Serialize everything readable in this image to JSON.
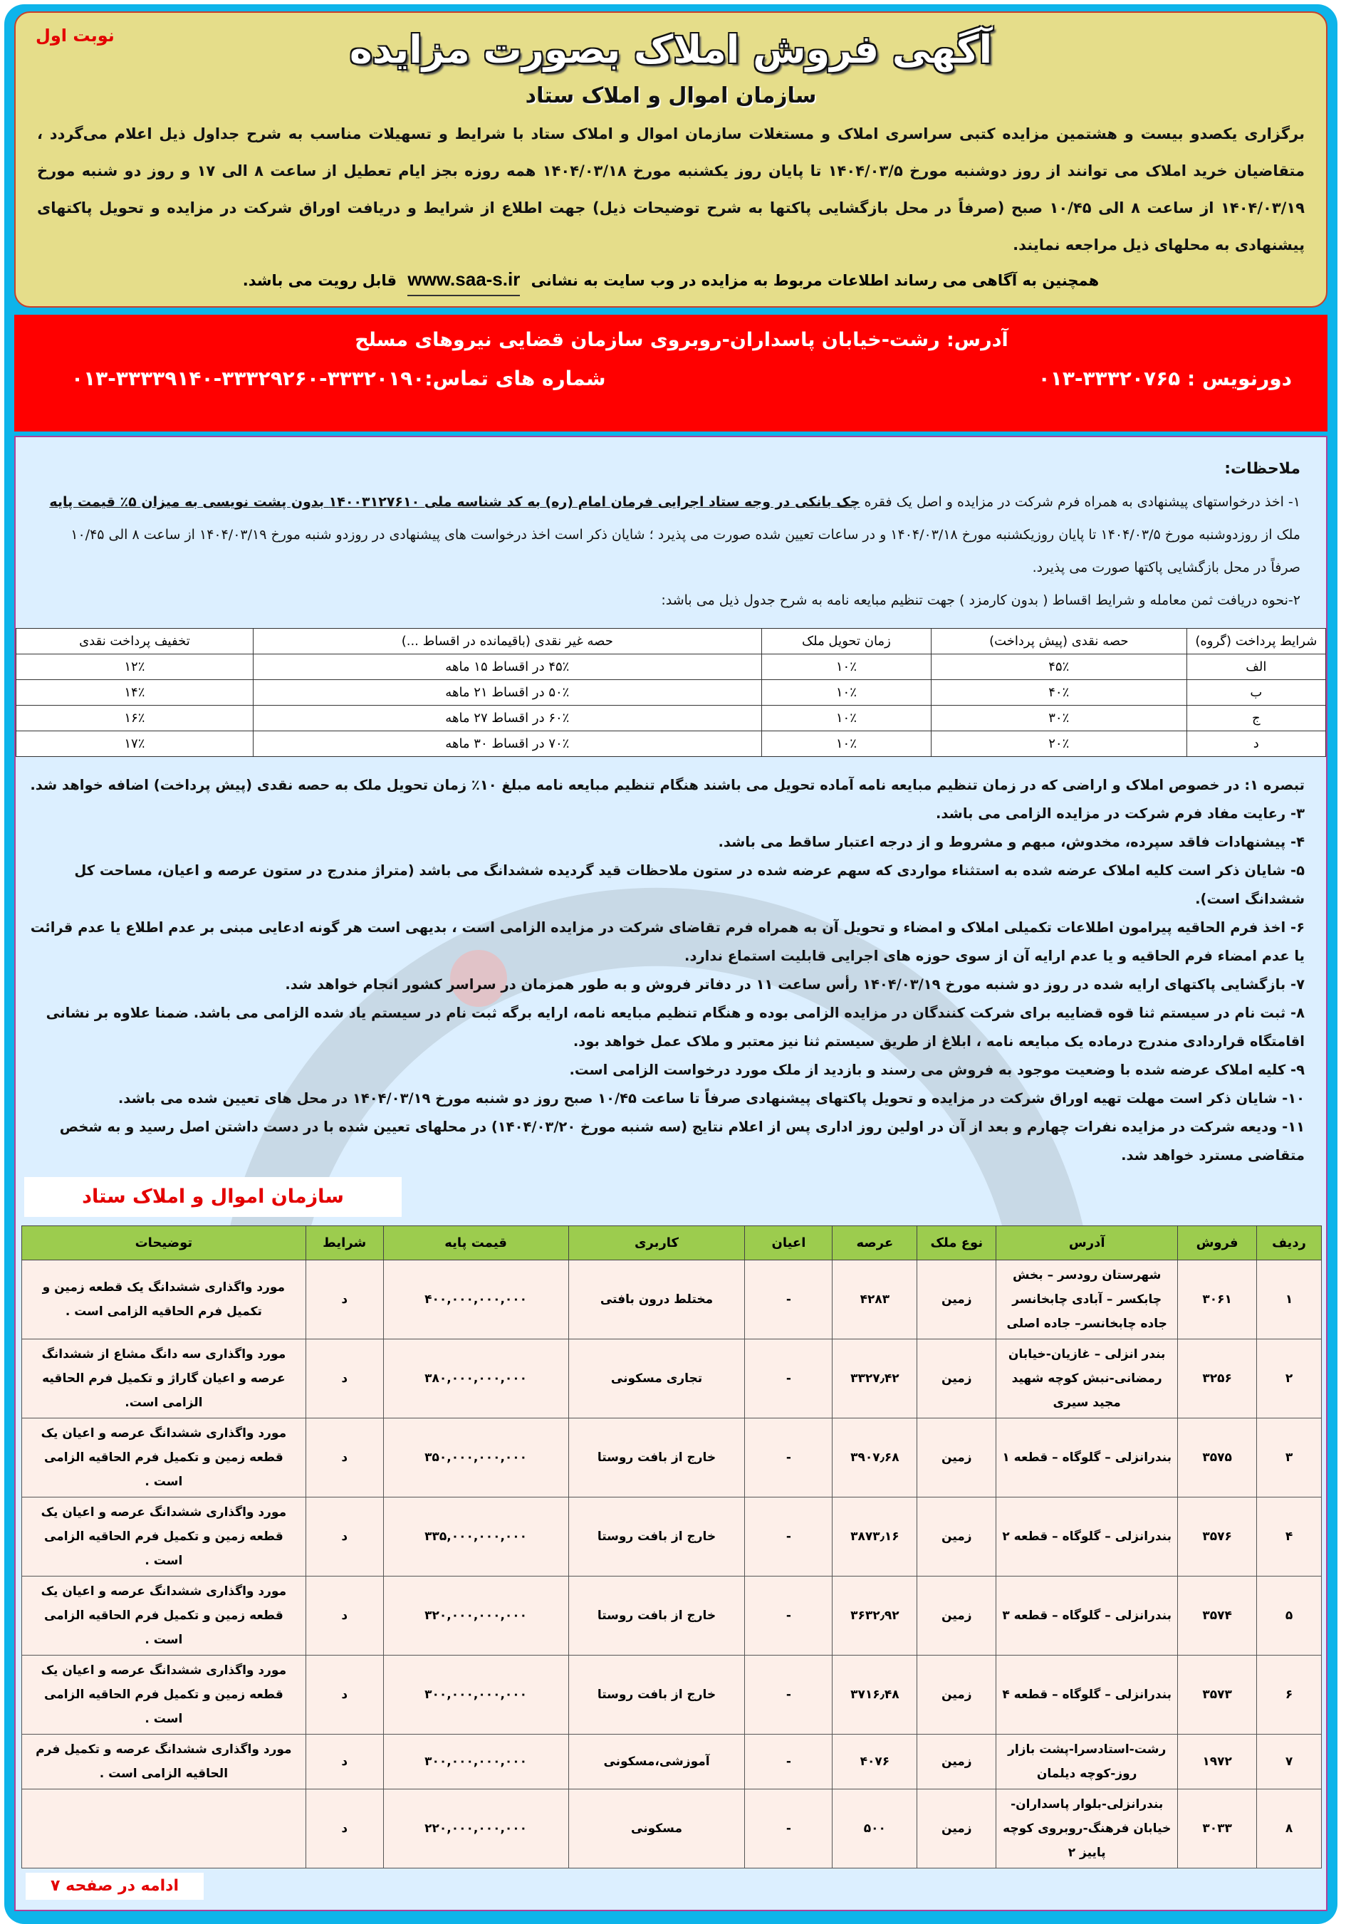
{
  "colors": {
    "frame": "#0db4ea",
    "header_bg": "#e5dd8a",
    "red_band": "#ff0000",
    "notes_bg": "#dcefff",
    "table_header": "#9ccc4e",
    "accent_red": "#e30000"
  },
  "header": {
    "badge": "نوبت اول",
    "title": "آگهی فروش املاک بصورت مزایده",
    "subtitle": "سازمان اموال و املاک ستاد",
    "intro": "برگزاری یکصدو بیست و هشتمین مزایده کتبی سراسری املاک و مستغلات سازمان اموال و املاک ستاد با شرایط و تسهیلات مناسب به شرح جداول ذیل اعلام می‌گردد ، متقاضیان خرید املاک می توانند از روز دوشنبه مورخ ۱۴۰۴/۰۳/۵ تا پایان روز یکشنبه مورخ ۱۴۰۴/۰۳/۱۸ همه روزه بجز ایام تعطیل از ساعت ۸ الی ۱۷ و روز دو شنبه مورخ ۱۴۰۴/۰۳/۱۹ از ساعت ۸ الی ۱۰/۴۵ صبح (صرفاً در محل بازگشایی پاکتها به شرح توضیحات ذیل) جهت اطلاع از شرایط و دریافت اوراق شرکت در مزایده و تحویل پاکتهای پیشنهادی به محلهای ذیل مراجعه نمایند.",
    "web_pre": "همچنین به آگاهی می رساند اطلاعات مربوط به مزایده در وب سایت به نشانی",
    "web_url": "www.saa-s.ir",
    "web_post": "قابل رویت می باشد."
  },
  "contact": {
    "address": "آدرس: رشت-خیابان پاسداران-روبروی سازمان قضایی نیروهای مسلح",
    "fax_label": "دورنویس :",
    "fax": "۰۱۳-۳۳۳۲۰۷۶۵",
    "phones_label": "شماره های تماس:",
    "phones": "۰۱۳-۳۳۳۳۹۱۴۰-۳۳۳۲۹۲۶۰-۳۳۳۲۰۱۹۰"
  },
  "notes": {
    "heading": "ملاحظات:",
    "n1_pre": "۱- اخذ درخواستهای پیشنهادی به همراه فرم شرکت در مزایده و اصل یک فقره ",
    "n1_bold": "چک بانکی در وجه ستاد اجرایی فرمان امام (ره) به کد شناسه ملی ۱۴۰۰۳۱۲۷۶۱۰ بدون پشت نویسی به میزان ۵٪ قیمت پایه",
    "n1_post": " ملک از روزدوشنبه مورخ ۱۴۰۴/۰۳/۵ تا پایان روزیکشنبه مورخ ۱۴۰۴/۰۳/۱۸ و در ساعات تعیین شده صورت می پذیرد ؛ شایان ذکر است اخذ درخواست های پیشنهادی در روزدو شنبه مورخ ۱۴۰۴/۰۳/۱۹ از ساعت ۸ الی ۱۰/۴۵ صرفاً در محل بازگشایی پاکتها صورت می پذیرد.",
    "n2": "۲-نحوه دریافت ثمن معامله و شرایط اقساط ( بدون کارمزد ) جهت تنظیم مبایعه نامه به شرح جدول ذیل می باشد:"
  },
  "installments": {
    "headers": [
      "شرایط پرداخت (گروه)",
      "حصه نقدی (پیش پرداخت)",
      "زمان تحویل ملک",
      "حصه غیر نقدی (باقیمانده در اقساط ...)",
      "تخفیف پرداخت نقدی"
    ],
    "rows": [
      [
        "الف",
        "۴۵٪",
        "۱۰٪",
        "۴۵٪ در اقساط ۱۵ ماهه",
        "۱۲٪"
      ],
      [
        "ب",
        "۴۰٪",
        "۱۰٪",
        "۵۰٪ در اقساط ۲۱ ماهه",
        "۱۴٪"
      ],
      [
        "ج",
        "۳۰٪",
        "۱۰٪",
        "۶۰٪ در اقساط ۲۷ ماهه",
        "۱۶٪"
      ],
      [
        "د",
        "۲۰٪",
        "۱۰٪",
        "۷۰٪ در اقساط ۳۰ ماهه",
        "۱۷٪"
      ]
    ]
  },
  "rules": [
    "تبصره ۱: در خصوص املاک و اراضی که در زمان تنظیم مبایعه نامه آماده تحویل می باشند هنگام تنظیم مبایعه نامه مبلغ ۱۰٪ زمان تحویل ملک به حصه نقدی (پیش پرداخت) اضافه خواهد شد.",
    "۳- رعایت مفاد فرم شرکت در مزایده الزامی می باشد.",
    "۴- پیشنهادات فاقد سپرده، مخدوش، مبهم و مشروط و از درجه اعتبار ساقط می باشد.",
    "۵- شایان ذکر است کلیه املاک عرضه شده به استثناء مواردی که سهم عرضه شده در ستون ملاحظات قید گردیده ششدانگ می باشد (متراژ مندرج در ستون عرصه و اعیان، مساحت کل ششدانگ است).",
    "۶- اخذ فرم الحاقیه پیرامون اطلاعات تکمیلی املاک و امضاء و تحویل آن به همراه فرم تقاضای شرکت در مزایده الزامی است ، بدیهی است هر گونه ادعایی مبنی بر عدم اطلاع یا عدم قرائت یا عدم امضاء فرم الحاقیه و یا عدم ارایه آن از سوی حوزه های اجرایی قابلیت استماع ندارد.",
    "۷- بازگشایی پاکتهای ارایه شده در روز دو شنبه مورخ ۱۴۰۴/۰۳/۱۹ رأس ساعت ۱۱ در دفاتر فروش و به طور همزمان در سراسر کشور انجام خواهد شد.",
    "۸- ثبت نام در سیستم ثنا قوه قضاییه برای شرکت کنندگان در مزایده الزامی بوده و هنگام تنظیم مبایعه نامه، ارایه برگه ثبت نام در سیستم یاد شده الزامی می باشد. ضمنا علاوه بر نشانی اقامتگاه قراردادی مندرج درماده یک مبایعه نامه ، ابلاغ از طریق سیستم ثنا نیز معتبر و ملاک عمل خواهد بود.",
    "۹- کلیه املاک عرضه شده با وضعیت موجود به فروش می رسند و بازدید از ملک مورد درخواست الزامی است.",
    "۱۰- شایان ذکر است مهلت تهیه اوراق شرکت در مزایده و تحویل پاکتهای پیشنهادی صرفاً تا ساعت ۱۰/۴۵ صبح روز دو شنبه مورخ ۱۴۰۴/۰۳/۱۹ در محل های تعیین شده می باشد.",
    "۱۱- ودیعه شرکت در مزایده نفرات چهارم و بعد از آن در اولین روز اداری پس از اعلام نتایج (سه شنبه مورخ ۱۴۰۴/۰۳/۲۰) در محلهای تعیین شده با در دست داشتن اصل رسید و به شخص متقاضی مسترد خواهد شد."
  ],
  "org_label": "سازمان اموال و املاک ستاد",
  "properties": {
    "headers": [
      "ردیف",
      "فروش",
      "آدرس",
      "نوع ملک",
      "عرصه",
      "اعیان",
      "کاربری",
      "قیمت پایه",
      "شرایط",
      "توضیحات"
    ],
    "rows": [
      [
        "۱",
        "۳۰۶۱",
        "شهرستان رودسر – بخش چابکسر – آبادی چابخانسر جاده چابخانسر– جاده اصلی",
        "زمین",
        "۴۲۸۳",
        "-",
        "مختلط درون بافتی",
        "۴۰۰,۰۰۰,۰۰۰,۰۰۰",
        "د",
        "مورد واگذاری ششدانگ یک قطعه زمین و تکمیل فرم الحاقیه الزامی است ."
      ],
      [
        "۲",
        "۳۲۵۶",
        "بندر انزلی – غازیان-خیابان رمضانی-نبش کوچه شهید مجید سیری",
        "زمین",
        "۳۳۲۷٫۴۲",
        "-",
        "تجاری مسکونی",
        "۳۸۰,۰۰۰,۰۰۰,۰۰۰",
        "د",
        "مورد واگذاری سه دانگ مشاع از ششدانگ عرصه و اعیان گاراژ و تکمیل فرم الحاقیه الزامی است."
      ],
      [
        "۳",
        "۳۵۷۵",
        "بندرانزلی – گلوگاه – قطعه ۱",
        "زمین",
        "۳۹۰۷٫۶۸",
        "-",
        "خارج از بافت روستا",
        "۳۵۰,۰۰۰,۰۰۰,۰۰۰",
        "د",
        "مورد واگذاری ششدانگ عرصه و اعیان یک قطعه زمین و تکمیل فرم الحاقیه الزامی است ."
      ],
      [
        "۴",
        "۳۵۷۶",
        "بندرانزلی – گلوگاه – قطعه ۲",
        "زمین",
        "۳۸۷۳٫۱۶",
        "-",
        "خارج از بافت روستا",
        "۳۳۵,۰۰۰,۰۰۰,۰۰۰",
        "د",
        "مورد واگذاری ششدانگ عرصه و اعیان یک قطعه زمین و تکمیل فرم الحاقیه الزامی است ."
      ],
      [
        "۵",
        "۳۵۷۴",
        "بندرانزلی – گلوگاه – قطعه ۳",
        "زمین",
        "۳۶۳۲٫۹۲",
        "-",
        "خارج از بافت روستا",
        "۳۲۰,۰۰۰,۰۰۰,۰۰۰",
        "د",
        "مورد واگذاری ششدانگ عرصه و اعیان یک قطعه زمین و تکمیل فرم الحاقیه الزامی است ."
      ],
      [
        "۶",
        "۳۵۷۳",
        "بندرانزلی – گلوگاه – قطعه ۴",
        "زمین",
        "۳۷۱۶٫۴۸",
        "-",
        "خارج از بافت روستا",
        "۳۰۰,۰۰۰,۰۰۰,۰۰۰",
        "د",
        "مورد واگذاری ششدانگ عرصه و اعیان یک قطعه زمین و تکمیل فرم الحاقیه الزامی است ."
      ],
      [
        "۷",
        "۱۹۷۲",
        "رشت-استادسرا-پشت بازار روز-کوچه دیلمان",
        "زمین",
        "۴۰۷۶",
        "-",
        "آموزشی،مسکونی",
        "۳۰۰,۰۰۰,۰۰۰,۰۰۰",
        "د",
        "مورد واگذاری ششدانگ عرصه و تکمیل فرم الحاقیه الزامی است ."
      ],
      [
        "۸",
        "۳۰۳۳",
        "بندرانزلی-بلوار پاسداران-خیابان فرهنگ-روبروی کوچه پاییز ۲",
        "زمین",
        "۵۰۰",
        "-",
        "مسکونی",
        "۲۲۰,۰۰۰,۰۰۰,۰۰۰",
        "د",
        ""
      ]
    ]
  },
  "continued": "ادامه در صفحه ۷"
}
